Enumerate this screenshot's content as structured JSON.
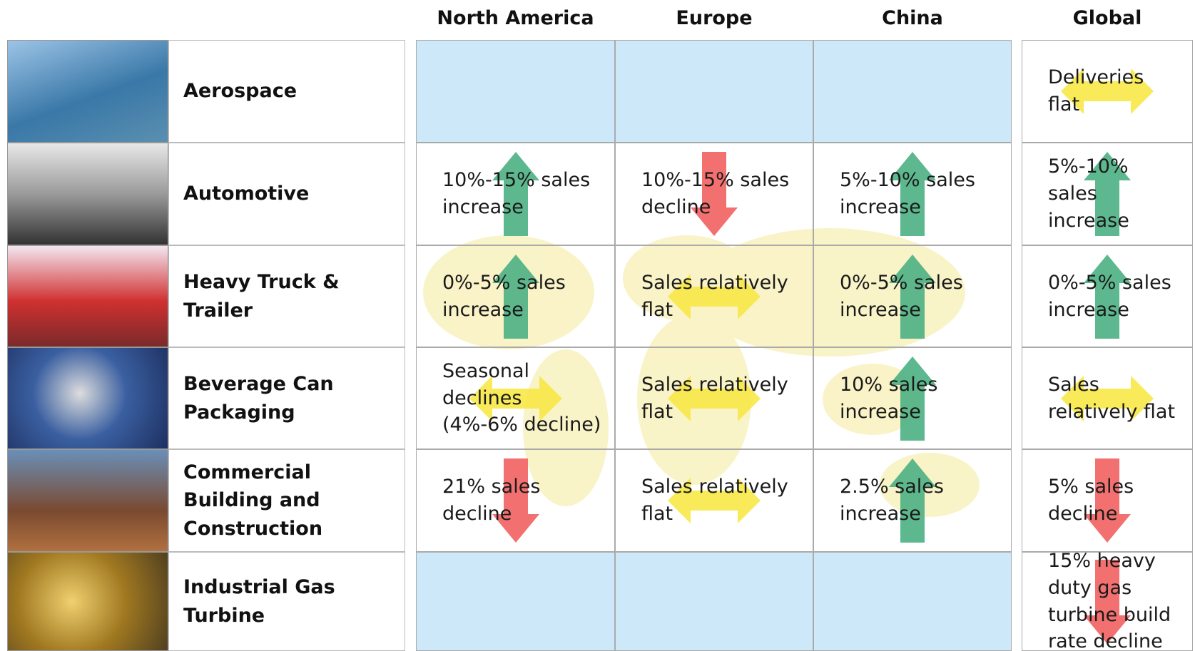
{
  "header": {
    "columns": [
      "North America",
      "Europe",
      "China",
      "Global"
    ]
  },
  "rows": [
    {
      "industry": "Aerospace",
      "cells": [
        null,
        null,
        null,
        "Deliveries flat"
      ]
    },
    {
      "industry": "Automotive",
      "cells": [
        "10%-15% sales increase",
        "10%-15% sales decline",
        "5%-10% sales increase",
        "5%-10% sales increase"
      ]
    },
    {
      "industry": "Heavy Truck & Trailer",
      "cells": [
        "0%-5% sales increase",
        "Sales relatively flat",
        "0%-5% sales increase",
        "0%-5% sales increase"
      ]
    },
    {
      "industry": "Beverage Can Packaging",
      "cells": [
        "Seasonal declines (4%-6% decline)",
        "Sales relatively flat",
        "10% sales increase",
        "Sales relatively flat"
      ]
    },
    {
      "industry": "Commercial Building and Construction",
      "cells": [
        "21% sales decline",
        "Sales relatively flat",
        "2.5% sales increase",
        "5% sales decline"
      ]
    },
    {
      "industry": "Industrial Gas Turbine",
      "cells": [
        null,
        null,
        null,
        "15% heavy duty gas turbine build rate decline"
      ]
    }
  ]
}
